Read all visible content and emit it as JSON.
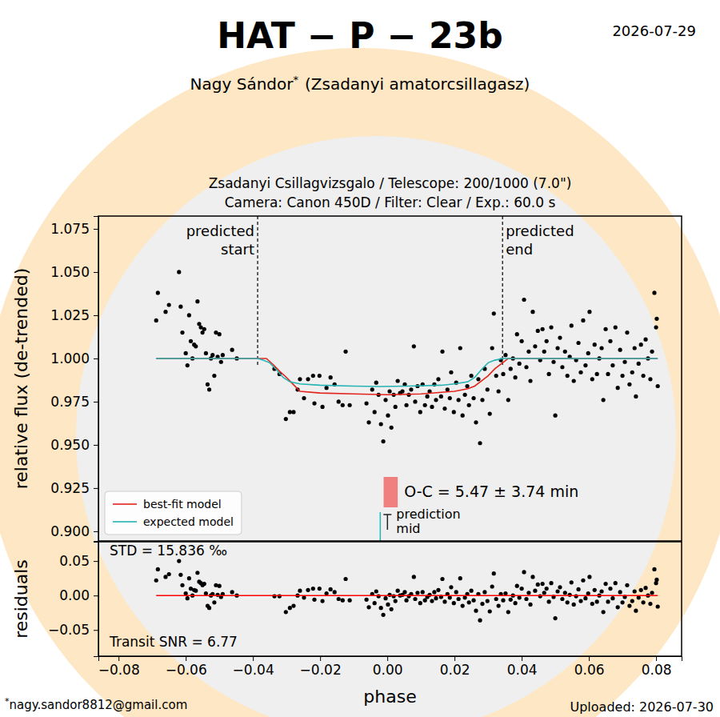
{
  "header": {
    "title": "HAT − P − 23b",
    "date": "2026-07-29",
    "observer": "Nagy Sándor",
    "observer_mark": "*",
    "affiliation": "(Zsadanyi amatorcsillagasz)",
    "instrument_lines": [
      "Zsadanyi Csillagvizsgalo / Telescope: 200/1000 (7.0\")",
      "Camera: Canon 450D / Filter: Clear / Exp.: 60.0 s"
    ]
  },
  "footer": {
    "mark": "*",
    "email": "nagy.sandor8812@gmail.com",
    "uploaded": "Uploaded: 2026-07-30"
  },
  "chart_data": [
    {
      "type": "scatter",
      "ylabel": "relative flux (de-trended)",
      "xlim": [
        -0.086,
        0.0876
      ],
      "ylim": [
        0.8944,
        1.0824
      ],
      "yticks": [
        {
          "value": 0.9,
          "label": "0.900"
        },
        0.925,
        {
          "value": 0.95,
          "label": "0.950"
        },
        0.975,
        {
          "value": 1.0,
          "label": "1.000"
        },
        1.025,
        {
          "value": 1.05,
          "label": "1.050"
        },
        1.075
      ],
      "tick_labels": "y",
      "legend": "lower left",
      "series": [
        {
          "type": "scatter",
          "color": "#000000",
          "marker": "circle",
          "x": [
            -0.0688,
            -0.0683,
            -0.066,
            -0.065,
            -0.062,
            -0.0615,
            -0.061,
            -0.06,
            -0.0595,
            -0.059,
            -0.0585,
            -0.058,
            -0.0575,
            -0.057,
            -0.0565,
            -0.056,
            -0.0555,
            -0.055,
            -0.0545,
            -0.054,
            -0.0535,
            -0.053,
            -0.0525,
            -0.052,
            -0.0515,
            -0.051,
            -0.0505,
            -0.05,
            -0.0495,
            -0.049,
            -0.0462,
            -0.0448,
            -0.0336,
            -0.0321,
            -0.0302,
            -0.029,
            -0.0279,
            -0.0267,
            -0.026,
            -0.0248,
            -0.0236,
            -0.0221,
            -0.0217,
            -0.0202,
            -0.0193,
            -0.0181,
            -0.0169,
            -0.0157,
            -0.0145,
            -0.0133,
            -0.0124,
            -0.0112,
            -0.0062,
            -0.0055,
            -0.0045,
            -0.0038,
            -0.0033,
            -0.0026,
            -0.0019,
            -0.0012,
            -0.0005,
            0.0002,
            0.0007,
            0.0012,
            0.0019,
            0.0024,
            0.0031,
            0.0038,
            0.0045,
            0.0052,
            0.0057,
            0.0064,
            0.0071,
            0.0079,
            0.0083,
            0.009,
            0.0098,
            0.0105,
            0.0112,
            0.0119,
            0.0126,
            0.0133,
            0.014,
            0.0145,
            0.0152,
            0.016,
            0.0164,
            0.0171,
            0.0179,
            0.0186,
            0.019,
            0.0198,
            0.0205,
            0.0212,
            0.0217,
            0.0224,
            0.0231,
            0.0238,
            0.0243,
            0.025,
            0.0257,
            0.0264,
            0.0271,
            0.0276,
            0.0283,
            0.029,
            0.0298,
            0.0305,
            0.0312,
            0.0317,
            0.0324,
            0.0331,
            0.0338,
            0.0345,
            0.0352,
            0.036,
            0.0367,
            0.0374,
            0.0381,
            0.0386,
            0.0393,
            0.04,
            0.0407,
            0.0414,
            0.0421,
            0.0426,
            0.0433,
            0.044,
            0.0448,
            0.0455,
            0.0462,
            0.0467,
            0.0474,
            0.0481,
            0.0488,
            0.0495,
            0.05,
            0.0507,
            0.0514,
            0.0521,
            0.0529,
            0.0536,
            0.0543,
            0.0548,
            0.0555,
            0.0562,
            0.0569,
            0.0576,
            0.0583,
            0.059,
            0.0598,
            0.0602,
            0.061,
            0.0617,
            0.0624,
            0.0631,
            0.0638,
            0.0643,
            0.065,
            0.0657,
            0.0664,
            0.0671,
            0.0679,
            0.0686,
            0.0693,
            0.07,
            0.0707,
            0.0714,
            0.0721,
            0.0729,
            0.0736,
            0.074,
            0.0748,
            0.0755,
            0.0762,
            0.0769,
            0.0776,
            0.0783,
            0.0788,
            0.0795,
            0.08,
            0.0802,
            0.0805
          ],
          "values": [
            1.022,
            1.038,
            1.027,
            1.031,
            1.05,
            1.03,
            1.015,
            1.003,
            0.996,
            1.025,
            1.01,
            1.0,
            1.008,
            1.007,
            1.033,
            1.02,
            1.018,
            1.015,
            1.017,
            1.003,
            0.985,
            0.982,
            1.0,
            1.002,
            0.99,
            1.015,
            1.001,
            1.014,
            0.998,
            1.002,
            1.005,
            1.0,
            0.994,
            0.991,
            0.965,
            0.969,
            0.969,
            0.982,
            0.988,
            0.977,
            0.988,
            0.99,
            0.974,
            0.99,
            0.972,
            0.983,
            0.989,
            0.985,
            0.975,
            0.973,
            1.004,
            0.973,
            0.974,
            0.963,
            0.982,
            0.969,
            0.986,
            0.979,
            0.962,
            0.952,
            0.976,
            0.967,
            0.981,
            0.96,
            0.979,
            0.972,
            0.987,
            0.98,
            0.981,
            0.985,
            0.973,
            0.979,
            0.982,
            1.007,
            0.975,
            0.984,
            0.969,
            0.985,
            0.973,
            0.978,
            0.981,
            0.972,
            0.985,
            0.976,
            0.988,
            0.978,
            1.004,
            0.971,
            0.982,
            0.977,
            0.992,
            0.969,
            0.986,
            0.976,
            1.006,
            0.967,
            0.979,
            0.984,
            0.973,
            0.99,
            0.977,
            0.963,
            0.988,
            0.951,
            0.976,
            0.994,
            0.982,
            0.968,
            1.006,
            1.026,
            0.99,
            0.981,
            0.999,
            0.991,
            1.002,
            0.976,
            0.994,
            1.0,
            0.989,
            1.014,
            0.997,
            1.01,
            1.034,
            0.995,
            1.004,
            0.987,
            1.027,
            1.007,
            1.016,
            0.999,
            1.017,
            1.004,
            1.01,
            0.991,
            1.018,
            0.998,
            0.967,
            1.006,
            1.012,
            0.995,
            1.004,
            0.99,
            1.001,
            1.019,
            0.987,
            0.999,
            1.009,
            0.992,
            1.022,
            0.996,
            1.003,
            1.027,
            0.988,
            1.008,
            0.991,
            1.0,
            1.006,
            0.976,
            1.017,
            0.991,
            1.01,
            0.996,
            1.018,
            0.983,
            1.005,
            0.99,
            0.998,
            1.015,
            0.985,
            0.992,
            1.006,
            0.978,
            0.997,
            1.008,
            0.99,
            1.011,
            1.0,
            0.988,
            1.004,
            1.038,
            1.018,
            1.023,
            0.984
          ]
        },
        {
          "name": "best-fit model",
          "type": "line",
          "color": "#e3241c",
          "x": [
            -0.0688,
            -0.036,
            -0.034,
            -0.032,
            -0.03,
            -0.028,
            -0.026,
            -0.02,
            -0.01,
            0.0,
            0.01,
            0.02,
            0.024,
            0.026,
            0.028,
            0.03,
            0.032,
            0.034,
            0.036,
            0.0805
          ],
          "values": [
            1.0,
            1.0,
            0.9965,
            0.9925,
            0.989,
            0.985,
            0.981,
            0.98,
            0.9795,
            0.979,
            0.9795,
            0.981,
            0.9825,
            0.984,
            0.987,
            0.99,
            0.994,
            0.997,
            1.0,
            1.0
          ]
        },
        {
          "name": "expected model",
          "type": "line",
          "color": "#26b3b3",
          "x": [
            -0.0688,
            -0.0386,
            -0.037,
            -0.035,
            -0.033,
            -0.031,
            -0.029,
            -0.026,
            -0.02,
            -0.01,
            -0.0021,
            0.006,
            0.016,
            0.02,
            0.024,
            0.026,
            0.028,
            0.03,
            0.032,
            0.0343,
            0.0805
          ],
          "values": [
            1.0,
            1.0,
            0.999,
            0.9975,
            0.9935,
            0.989,
            0.9865,
            0.9853,
            0.9845,
            0.984,
            0.9838,
            0.984,
            0.9845,
            0.9853,
            0.9865,
            0.989,
            0.9935,
            0.9975,
            0.999,
            1.0,
            1.0
          ]
        }
      ],
      "markers": [
        {
          "x": -0.0386,
          "label": [
            "predicted",
            "start"
          ]
        },
        {
          "x": 0.0343,
          "label": [
            "predicted",
            "end"
          ]
        }
      ],
      "oc": {
        "label": "O-C = 5.47 ± 3.74 min",
        "range": [
          -0.0011,
          0.0031
        ],
        "color": "#f08080"
      },
      "prediction_mid": {
        "x": -0.0021,
        "label": [
          "prediction",
          "mid"
        ],
        "color": "#26b3b3"
      }
    },
    {
      "type": "scatter",
      "xlabel": "phase",
      "ylabel": "residuals",
      "xlim": [
        -0.086,
        0.0876
      ],
      "ylim": [
        -0.088,
        0.078
      ],
      "xticks": [
        {
          "value": -0.08,
          "label": "−0.08"
        },
        {
          "value": -0.06,
          "label": "−0.06"
        },
        {
          "value": -0.04,
          "label": "−0.04"
        },
        {
          "value": -0.02,
          "label": "−0.02"
        },
        {
          "value": 0,
          "label": "0.00"
        },
        0.02,
        0.04,
        0.06,
        0.08
      ],
      "yticks": [
        {
          "value": -0.05,
          "label": "−0.05"
        },
        {
          "value": 0,
          "label": "0.00"
        },
        0.05
      ],
      "series": [
        {
          "type": "scatter",
          "color": "#000000",
          "marker": "circle",
          "x": [
            -0.0688,
            -0.0683,
            -0.066,
            -0.065,
            -0.062,
            -0.0615,
            -0.061,
            -0.06,
            -0.0595,
            -0.059,
            -0.0585,
            -0.058,
            -0.0575,
            -0.057,
            -0.0565,
            -0.056,
            -0.0555,
            -0.055,
            -0.0545,
            -0.054,
            -0.0535,
            -0.053,
            -0.0525,
            -0.052,
            -0.0515,
            -0.051,
            -0.0505,
            -0.05,
            -0.0495,
            -0.049,
            -0.0462,
            -0.0448,
            -0.0336,
            -0.0321,
            -0.0302,
            -0.029,
            -0.0279,
            -0.0267,
            -0.026,
            -0.0248,
            -0.0236,
            -0.0221,
            -0.0217,
            -0.0202,
            -0.0193,
            -0.0181,
            -0.0169,
            -0.0157,
            -0.0145,
            -0.0133,
            -0.0124,
            -0.0112,
            -0.0062,
            -0.0055,
            -0.0045,
            -0.0038,
            -0.0033,
            -0.0026,
            -0.0019,
            -0.0012,
            -0.0005,
            0.0002,
            0.0007,
            0.0012,
            0.0019,
            0.0024,
            0.0031,
            0.0038,
            0.0045,
            0.0052,
            0.0057,
            0.0064,
            0.0071,
            0.0079,
            0.0083,
            0.009,
            0.0098,
            0.0105,
            0.0112,
            0.0119,
            0.0126,
            0.0133,
            0.014,
            0.0145,
            0.0152,
            0.016,
            0.0164,
            0.0171,
            0.0179,
            0.0186,
            0.019,
            0.0198,
            0.0205,
            0.0212,
            0.0217,
            0.0224,
            0.0231,
            0.0238,
            0.0243,
            0.025,
            0.0257,
            0.0264,
            0.0271,
            0.0276,
            0.0283,
            0.029,
            0.0298,
            0.0305,
            0.0312,
            0.0317,
            0.0324,
            0.0331,
            0.0338,
            0.0345,
            0.0352,
            0.036,
            0.0367,
            0.0374,
            0.0381,
            0.0386,
            0.0393,
            0.04,
            0.0407,
            0.0414,
            0.0421,
            0.0426,
            0.0433,
            0.044,
            0.0448,
            0.0455,
            0.0462,
            0.0467,
            0.0474,
            0.0481,
            0.0488,
            0.0495,
            0.05,
            0.0507,
            0.0514,
            0.0521,
            0.0529,
            0.0536,
            0.0543,
            0.0548,
            0.0555,
            0.0562,
            0.0569,
            0.0576,
            0.0583,
            0.059,
            0.0598,
            0.0602,
            0.061,
            0.0617,
            0.0624,
            0.0631,
            0.0638,
            0.0643,
            0.065,
            0.0657,
            0.0664,
            0.0671,
            0.0679,
            0.0686,
            0.0693,
            0.07,
            0.0707,
            0.0714,
            0.0721,
            0.0729,
            0.0736,
            0.074,
            0.0748,
            0.0755,
            0.0762,
            0.0769,
            0.0776,
            0.0783,
            0.0788,
            0.0795,
            0.08,
            0.0802,
            0.0805
          ],
          "values": [
            0.022,
            0.038,
            0.027,
            0.031,
            0.05,
            0.03,
            0.015,
            0.003,
            -0.004,
            0.025,
            0.01,
            0.0,
            0.008,
            0.007,
            0.033,
            0.02,
            0.018,
            0.015,
            0.017,
            0.003,
            -0.015,
            -0.018,
            0.0,
            0.002,
            -0.01,
            0.015,
            0.001,
            0.014,
            -0.002,
            0.002,
            0.005,
            0.0,
            -0.001,
            -0.001,
            -0.024,
            -0.018,
            -0.015,
            0.0,
            0.007,
            -0.003,
            0.008,
            0.01,
            -0.006,
            0.01,
            -0.008,
            0.003,
            0.009,
            0.005,
            -0.005,
            -0.007,
            0.024,
            -0.007,
            -0.006,
            -0.017,
            0.002,
            -0.011,
            0.006,
            -0.001,
            -0.018,
            -0.028,
            -0.004,
            -0.013,
            0.001,
            -0.02,
            -0.001,
            -0.008,
            0.007,
            0.0,
            0.001,
            0.005,
            -0.007,
            -0.001,
            0.002,
            0.027,
            -0.005,
            0.004,
            -0.011,
            0.005,
            -0.007,
            -0.002,
            0.001,
            -0.008,
            0.005,
            -0.004,
            0.008,
            -0.002,
            0.024,
            -0.009,
            0.002,
            -0.003,
            0.012,
            -0.011,
            0.005,
            -0.005,
            0.025,
            -0.015,
            -0.003,
            0.002,
            -0.01,
            0.007,
            -0.007,
            -0.022,
            0.002,
            -0.036,
            -0.012,
            0.005,
            -0.008,
            -0.023,
            0.013,
            0.032,
            -0.005,
            -0.015,
            0.002,
            -0.007,
            0.003,
            -0.024,
            -0.006,
            0.0,
            -0.011,
            0.014,
            -0.003,
            0.01,
            0.034,
            -0.005,
            0.004,
            -0.013,
            0.027,
            0.007,
            0.016,
            -0.001,
            0.017,
            0.004,
            0.01,
            -0.009,
            0.018,
            -0.002,
            -0.033,
            0.006,
            0.012,
            -0.005,
            0.004,
            -0.01,
            0.001,
            0.019,
            -0.013,
            -0.001,
            0.009,
            -0.008,
            0.022,
            -0.004,
            0.003,
            0.027,
            -0.012,
            0.008,
            -0.009,
            0.0,
            0.006,
            -0.024,
            0.017,
            -0.009,
            0.01,
            -0.004,
            0.018,
            -0.017,
            0.005,
            -0.01,
            -0.002,
            0.015,
            -0.015,
            -0.008,
            0.006,
            -0.022,
            -0.003,
            0.008,
            -0.01,
            0.011,
            0.0,
            -0.012,
            0.004,
            0.038,
            0.018,
            0.023,
            -0.016
          ]
        },
        {
          "type": "line",
          "color": "#ff0000",
          "x": [
            -0.0688,
            0.0805
          ],
          "values": [
            0,
            0
          ]
        }
      ],
      "stats": [
        "STD = 15.836 ‰",
        "Transit SNR = 6.77"
      ]
    }
  ]
}
